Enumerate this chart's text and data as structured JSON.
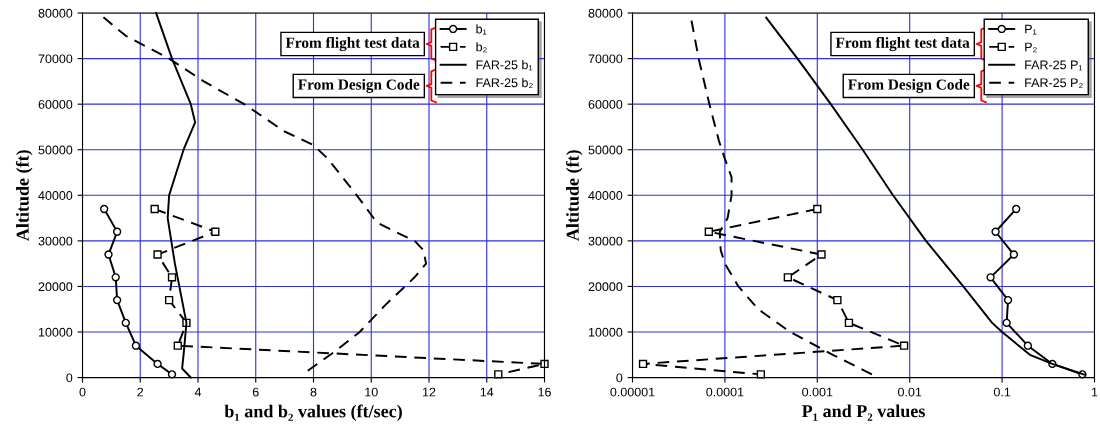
{
  "chart_data": [
    {
      "type": "line",
      "xlabel": "b₁ and b₂ values (ft/sec)",
      "ylabel": "Altitude (ft)",
      "xlim": [
        0,
        16
      ],
      "xticks": [
        0,
        2,
        4,
        6,
        8,
        10,
        12,
        14,
        16
      ],
      "ylim": [
        0,
        80000
      ],
      "yticks": [
        0,
        10000,
        20000,
        30000,
        40000,
        50000,
        60000,
        70000,
        80000
      ],
      "grid": true,
      "legend": "top right",
      "annotations": [
        "From flight test data",
        "From Design Code"
      ],
      "series": [
        {
          "name": "b₁",
          "color": "#000000",
          "marker": "circle",
          "line_style": "solid",
          "x": [
            0.75,
            1.2,
            0.9,
            1.15,
            1.2,
            1.5,
            1.85,
            2.6,
            3.1
          ],
          "values": [
            37000,
            32000,
            27000,
            22000,
            17000,
            12000,
            7000,
            3000,
            700
          ]
        },
        {
          "name": "b₂",
          "color": "#000000",
          "marker": "square",
          "line_style": "dashed",
          "x": [
            2.5,
            4.6,
            2.6,
            3.1,
            3.0,
            3.6,
            3.3,
            16,
            14.4
          ],
          "values": [
            37000,
            32000,
            27000,
            22000,
            17000,
            12000,
            7000,
            3000,
            700
          ]
        },
        {
          "name": "FAR-25 b₁",
          "color": "#000000",
          "marker": "none",
          "line_style": "solid",
          "x": [
            3.75,
            3.45,
            3.5,
            3.6,
            3.2,
            2.95,
            3.0,
            3.5,
            3.9,
            3.75,
            3.1,
            2.55
          ],
          "values": [
            0,
            2000,
            5000,
            12000,
            25000,
            35000,
            40000,
            50000,
            56000,
            60000,
            70000,
            80000
          ]
        },
        {
          "name": "FAR-25 b₂",
          "color": "#000000",
          "marker": "none",
          "line_style": "dashed",
          "x": [
            7.8,
            8.8,
            9.6,
            10.5,
            11.5,
            11.9,
            11.8,
            11.5,
            11,
            10.2,
            9.5,
            8.5,
            8,
            7,
            5.6,
            4.2,
            3,
            1.5,
            0.55
          ],
          "values": [
            1500,
            6000,
            10000,
            16000,
            22000,
            25000,
            28000,
            30000,
            31500,
            34000,
            40000,
            48000,
            51000,
            54000,
            60000,
            65000,
            70000,
            75000,
            80000
          ]
        }
      ]
    },
    {
      "type": "line",
      "xlabel": "P₁ and P₂ values",
      "ylabel": "Altitude (ft)",
      "log": "x",
      "xlim": [
        1e-05,
        1
      ],
      "xticks": [
        {
          "value": 1e-05,
          "label": "0.00001"
        },
        0.0001,
        0.001,
        0.01,
        0.1,
        1
      ],
      "ylim": [
        0,
        80000
      ],
      "yticks": [
        0,
        10000,
        20000,
        30000,
        40000,
        50000,
        60000,
        70000,
        80000
      ],
      "grid": true,
      "legend": "top right",
      "annotations": [
        "From flight test data",
        "From Design Code"
      ],
      "series": [
        {
          "name": "P₁",
          "color": "#000000",
          "marker": "circle",
          "line_style": "solid",
          "x": [
            0.142,
            0.085,
            0.134,
            0.075,
            0.116,
            0.112,
            0.19,
            0.35,
            0.74
          ],
          "values": [
            37000,
            32000,
            27000,
            22000,
            17000,
            12000,
            7000,
            3000,
            700
          ]
        },
        {
          "name": "P₂",
          "color": "#000000",
          "marker": "square",
          "line_style": "dashed",
          "x": [
            0.001,
            6.7e-05,
            0.00111,
            0.00048,
            0.00165,
            0.0022,
            0.0087,
            1.3e-05,
            0.000245
          ],
          "values": [
            37000,
            32000,
            27000,
            22000,
            17000,
            12000,
            7000,
            3000,
            700
          ]
        },
        {
          "name": "FAR-25 P₁",
          "color": "#000000",
          "marker": "none",
          "line_style": "solid",
          "x": [
            0.79,
            0.35,
            0.2,
            0.1,
            0.078,
            0.038,
            0.015,
            0.0066,
            0.0031,
            0.0014,
            0.00061,
            0.00028
          ],
          "values": [
            600,
            3000,
            5000,
            10000,
            12000,
            20000,
            30000,
            40000,
            50000,
            60000,
            70000,
            79000
          ]
        },
        {
          "name": "FAR-25 P₂",
          "color": "#000000",
          "marker": "none",
          "line_style": "dashed",
          "x": [
            0.0039,
            0.00147,
            0.00051,
            0.00023,
            0.00014,
            0.0001,
            9e-05,
            8.8e-05,
            0.000107,
            0.000118,
            0.000118,
            0.0001,
            8.6e-05,
            6.8e-05,
            5.2e-05,
            4.2e-05
          ],
          "values": [
            700,
            5000,
            10000,
            15000,
            20000,
            25000,
            28000,
            32000,
            35000,
            40000,
            44000,
            48000,
            52000,
            60000,
            70000,
            80000
          ]
        }
      ]
    }
  ]
}
